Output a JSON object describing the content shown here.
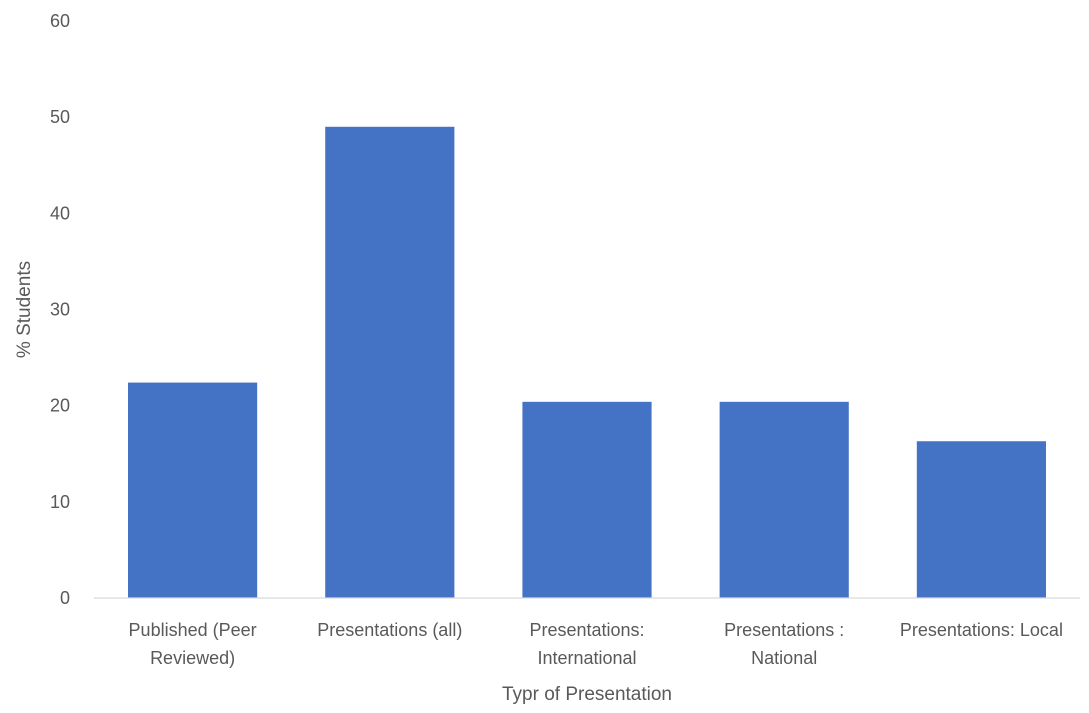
{
  "chart_data": {
    "type": "bar",
    "title": "",
    "xlabel": "Typr of Presentation",
    "ylabel": "% Students",
    "ylim": [
      0,
      60
    ],
    "yticks": [
      0,
      10,
      20,
      30,
      40,
      50,
      60
    ],
    "grid": false,
    "legend": "none",
    "bar_color": "#4472C4",
    "categories": [
      [
        "Published (Peer",
        "Reviewed)"
      ],
      [
        "Presentations (all)"
      ],
      [
        "Presentations:",
        "International"
      ],
      [
        "Presentations :",
        "National"
      ],
      [
        "Presentations: Local"
      ]
    ],
    "series": [
      {
        "values": [
          22.4,
          49.0,
          20.4,
          20.4,
          16.3
        ]
      }
    ]
  }
}
